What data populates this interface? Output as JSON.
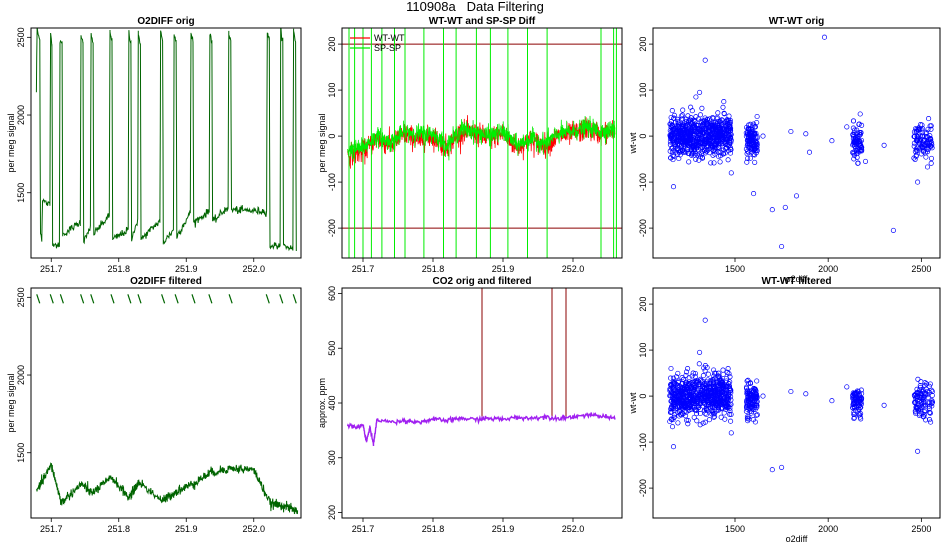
{
  "figure_title": "110908a   Data Filtering",
  "colors": {
    "o2diff": "#006400",
    "wt_wt": "#ff0000",
    "sp_sp": "#00ee00",
    "limit_line": "#8b0000",
    "co2_orig": "#8b0000",
    "co2_filtered": "#a020f0",
    "scatter": "#0000ff"
  },
  "chart_data": [
    {
      "id": "o2diff-orig",
      "type": "line",
      "title": "O2DIFF orig",
      "xlabel": "",
      "ylabel": "per meg signal",
      "xlim": [
        251.67,
        252.07
      ],
      "ylim": [
        1080,
        2560
      ],
      "xticks": [
        251.7,
        251.8,
        251.9,
        252.0
      ],
      "xtick_labels": [
        "251.7",
        "251.8",
        "251.9",
        "252.0"
      ],
      "yticks": [
        1500,
        2000,
        2500
      ],
      "ytick_labels": [
        "1500",
        "2000",
        "2500"
      ],
      "series": [
        {
          "name": "O2DIFF",
          "color": "#006400",
          "x": [
            251.678,
            251.679,
            251.683,
            251.684,
            251.686,
            251.687,
            251.698,
            251.699,
            251.701,
            251.702,
            251.712,
            251.713,
            251.716,
            251.717,
            251.743,
            251.744,
            251.747,
            251.748,
            251.758,
            251.759,
            251.762,
            251.763,
            251.786,
            251.787,
            251.79,
            251.791,
            251.814,
            251.815,
            251.818,
            251.819,
            251.828,
            251.829,
            251.832,
            251.833,
            251.861,
            251.862,
            251.865,
            251.866,
            251.881,
            251.882,
            251.885,
            251.886,
            251.906,
            251.907,
            251.91,
            251.911,
            251.934,
            251.935,
            251.938,
            251.939,
            251.962,
            251.963,
            251.966,
            251.967,
            252.019,
            252.02,
            252.023,
            252.024,
            252.039,
            252.04,
            252.043,
            252.044,
            252.058,
            252.059,
            252.062,
            252.063
          ],
          "y": [
            2150,
            2550,
            2480,
            1250,
            1200,
            1450,
            1420,
            2520,
            2470,
            1180,
            1150,
            2480,
            2450,
            1230,
            1310,
            2520,
            2470,
            1180,
            1280,
            2510,
            2460,
            1240,
            1350,
            2540,
            2480,
            1200,
            1260,
            2530,
            2460,
            1210,
            1320,
            2520,
            2470,
            1200,
            1320,
            2530,
            2470,
            1180,
            1260,
            2520,
            2470,
            1220,
            1370,
            2530,
            2470,
            1310,
            1380,
            2530,
            2470,
            1310,
            1410,
            2520,
            2470,
            1390,
            1380,
            2540,
            2480,
            1160,
            1160,
            2560,
            2480,
            1160,
            1140,
            2550,
            2470,
            1110
          ]
        }
      ]
    },
    {
      "id": "wt-sp-diff",
      "type": "line",
      "title": "WT-WT and SP-SP Diff",
      "xlabel": "",
      "ylabel": "per meg signal",
      "xlim": [
        251.67,
        252.07
      ],
      "ylim": [
        -265,
        235
      ],
      "xticks": [
        251.7,
        251.8,
        251.9,
        252.0
      ],
      "xtick_labels": [
        "251.7",
        "251.8",
        "251.9",
        "252.0"
      ],
      "yticks": [
        -200,
        -100,
        0,
        100,
        200
      ],
      "ytick_labels": [
        "-200",
        "-100",
        "0",
        "100",
        "200"
      ],
      "hlines": [
        200,
        -200
      ],
      "legend": {
        "position": "top-left",
        "entries": [
          "WT-WT",
          "SP-SP"
        ]
      },
      "series": [
        {
          "name": "WT-WT",
          "color": "#ff0000",
          "x": [
            251.678,
            251.7,
            251.72,
            251.74,
            251.76,
            251.78,
            251.8,
            251.82,
            251.84,
            251.86,
            251.88,
            251.9,
            251.92,
            251.94,
            251.96,
            251.98,
            252.0,
            252.02,
            252.04,
            252.06
          ],
          "y": [
            -40,
            -35,
            -5,
            -20,
            5,
            -10,
            0,
            -25,
            10,
            5,
            -5,
            5,
            -25,
            -10,
            -20,
            0,
            5,
            15,
            5,
            10
          ]
        },
        {
          "name": "SP-SP",
          "color": "#00ee00",
          "x": [
            251.678,
            251.7,
            251.72,
            251.74,
            251.76,
            251.78,
            251.8,
            251.82,
            251.84,
            251.86,
            251.88,
            251.9,
            251.92,
            251.94,
            251.96,
            251.98,
            252.0,
            252.02,
            252.04,
            252.06
          ],
          "y": [
            -30,
            -25,
            0,
            -15,
            10,
            5,
            5,
            -20,
            15,
            10,
            0,
            10,
            -20,
            -5,
            -15,
            5,
            10,
            20,
            10,
            15
          ],
          "spikes_x": [
            251.68,
            251.688,
            251.7,
            251.712,
            251.727,
            251.745,
            251.76,
            251.787,
            251.815,
            251.833,
            251.862,
            251.882,
            251.907,
            251.935,
            251.963,
            252.04,
            252.058,
            252.062
          ]
        }
      ]
    },
    {
      "id": "wt-wt-orig",
      "type": "scatter",
      "title": "WT-WT orig",
      "xlabel": "o2diff",
      "ylabel": "wt-wt",
      "xlim": [
        1060,
        2600
      ],
      "ylim": [
        -265,
        235
      ],
      "xticks": [
        1500,
        2000,
        2500
      ],
      "xtick_labels": [
        "1500",
        "2000",
        "2500"
      ],
      "yticks": [
        -200,
        -100,
        0,
        100,
        200
      ],
      "ytick_labels": [
        "-200",
        "-100",
        "0",
        "100",
        "200"
      ],
      "clusters": [
        {
          "x_range": [
            1150,
            1480
          ],
          "y_center": 0,
          "y_spread": 40,
          "count": 700
        },
        {
          "x_range": [
            1560,
            1620
          ],
          "y_center": -10,
          "y_spread": 35,
          "count": 120
        },
        {
          "x_range": [
            2130,
            2180
          ],
          "y_center": -15,
          "y_spread": 30,
          "count": 80
        },
        {
          "x_range": [
            2460,
            2560
          ],
          "y_center": -10,
          "y_spread": 35,
          "count": 100
        }
      ],
      "outliers": {
        "x": [
          1340,
          1290,
          1310,
          1440,
          1480,
          1700,
          1750,
          1830,
          1980,
          2020,
          1880,
          2350,
          1770,
          2200,
          2300,
          1650,
          1900,
          2100,
          1600,
          1800,
          2480,
          1170
        ],
        "y": [
          165,
          85,
          95,
          75,
          -80,
          -160,
          -240,
          -130,
          215,
          -10,
          5,
          -205,
          -155,
          -55,
          -20,
          0,
          -35,
          20,
          -125,
          10,
          -100,
          -110
        ]
      }
    },
    {
      "id": "o2diff-filtered",
      "type": "line",
      "title": "O2DIFF filtered",
      "xlabel": "",
      "ylabel": "per meg signal",
      "xlim": [
        251.67,
        252.07
      ],
      "ylim": [
        1080,
        2560
      ],
      "xticks": [
        251.7,
        251.8,
        251.9,
        252.0
      ],
      "xtick_labels": [
        "251.7",
        "251.8",
        "251.9",
        "252.0"
      ],
      "yticks": [
        1500,
        2000,
        2500
      ],
      "ytick_labels": [
        "1500",
        "2000",
        "2500"
      ],
      "series": [
        {
          "name": "O2DIFF filtered",
          "color": "#006400",
          "x": [
            251.678,
            251.7,
            251.715,
            251.745,
            251.76,
            251.79,
            251.815,
            251.83,
            251.865,
            251.885,
            251.91,
            251.935,
            251.965,
            252.0,
            252.025,
            252.045,
            252.065
          ],
          "y": [
            1250,
            1420,
            1180,
            1300,
            1240,
            1340,
            1210,
            1310,
            1190,
            1250,
            1300,
            1370,
            1400,
            1390,
            1170,
            1160,
            1120
          ]
        }
      ],
      "upper_segments_x": [
        251.68,
        251.7,
        251.715,
        251.745,
        251.76,
        251.79,
        251.815,
        251.83,
        251.865,
        251.885,
        251.91,
        251.935,
        251.965,
        252.02,
        252.04,
        252.06
      ],
      "upper_segment_y": 2500
    },
    {
      "id": "co2-orig-filtered",
      "type": "line",
      "title": "CO2 orig and filtered",
      "xlabel": "",
      "ylabel": "approx. ppm",
      "xlim": [
        251.67,
        252.07
      ],
      "ylim": [
        190,
        610
      ],
      "xticks": [
        251.7,
        251.8,
        251.9,
        252.0
      ],
      "xtick_labels": [
        "251.7",
        "251.8",
        "251.9",
        "252.0"
      ],
      "yticks": [
        200,
        300,
        400,
        500,
        600
      ],
      "ytick_labels": [
        "200",
        "300",
        "400",
        "500",
        "600"
      ],
      "series": [
        {
          "name": "CO2 filtered",
          "color": "#a020f0",
          "x": [
            251.678,
            251.69,
            251.7,
            251.705,
            251.71,
            251.715,
            251.72,
            251.74,
            251.76,
            251.78,
            251.8,
            251.82,
            251.84,
            251.86,
            251.88,
            251.9,
            251.92,
            251.94,
            251.96,
            251.98,
            252.0,
            252.02,
            252.04,
            252.06
          ],
          "y": [
            360,
            355,
            360,
            330,
            355,
            325,
            370,
            365,
            368,
            365,
            370,
            368,
            372,
            370,
            372,
            370,
            374,
            372,
            375,
            372,
            375,
            378,
            376,
            372
          ]
        }
      ],
      "orig_spikes_x": [
        251.87,
        251.97,
        251.99
      ],
      "orig_spike_y": 610
    },
    {
      "id": "wt-wt-filtered",
      "type": "scatter",
      "title": "WT-WT filtered",
      "xlabel": "o2diff",
      "ylabel": "wt-wt",
      "xlim": [
        1060,
        2600
      ],
      "ylim": [
        -265,
        235
      ],
      "xticks": [
        1500,
        2000,
        2500
      ],
      "xtick_labels": [
        "1500",
        "2000",
        "2500"
      ],
      "yticks": [
        -200,
        -100,
        0,
        100,
        200
      ],
      "ytick_labels": [
        "-200",
        "-100",
        "0",
        "100",
        "200"
      ],
      "clusters": [
        {
          "x_range": [
            1150,
            1480
          ],
          "y_center": 0,
          "y_spread": 40,
          "count": 700
        },
        {
          "x_range": [
            1560,
            1620
          ],
          "y_center": -10,
          "y_spread": 35,
          "count": 120
        },
        {
          "x_range": [
            2130,
            2180
          ],
          "y_center": -15,
          "y_spread": 30,
          "count": 80
        },
        {
          "x_range": [
            2460,
            2560
          ],
          "y_center": -10,
          "y_spread": 35,
          "count": 100
        }
      ],
      "outliers": {
        "x": [
          1340,
          1310,
          1480,
          1700,
          1750,
          1880,
          2020,
          2100,
          2300,
          2480,
          1800,
          1650,
          1170
        ],
        "y": [
          165,
          95,
          -80,
          -160,
          -155,
          5,
          -10,
          20,
          -20,
          -120,
          10,
          0,
          -110
        ]
      }
    }
  ]
}
